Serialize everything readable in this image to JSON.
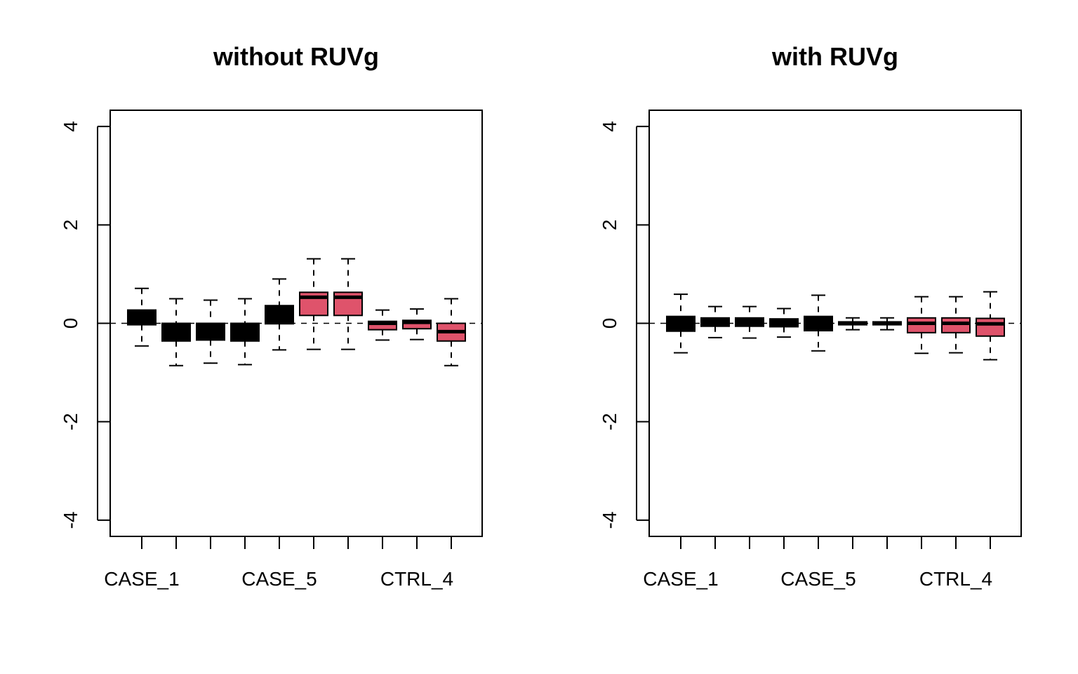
{
  "colors": {
    "case": "#000000",
    "ctrl": "#DF536B"
  },
  "chart_data": [
    {
      "type": "boxplot",
      "title": "without RUVg",
      "ylim": [
        -4.33,
        4.33
      ],
      "yticks": [
        -4,
        -2,
        0,
        2,
        4
      ],
      "tick_labels": [
        "CASE_1",
        "",
        "",
        "",
        "CASE_5",
        "",
        "",
        "",
        "CTRL_4",
        ""
      ],
      "reference_line": 0,
      "box_colors": [
        "case",
        "case",
        "case",
        "case",
        "case",
        "ctrl",
        "ctrl",
        "ctrl",
        "ctrl",
        "ctrl"
      ],
      "boxes": [
        {
          "lower": -0.46,
          "q1": -0.03,
          "median": 0.0,
          "q3": 0.27,
          "upper": 0.71
        },
        {
          "lower": -0.86,
          "q1": -0.36,
          "median": -0.1,
          "q3": 0.0,
          "upper": 0.5
        },
        {
          "lower": -0.81,
          "q1": -0.34,
          "median": -0.1,
          "q3": 0.0,
          "upper": 0.47
        },
        {
          "lower": -0.84,
          "q1": -0.36,
          "median": -0.1,
          "q3": 0.0,
          "upper": 0.5
        },
        {
          "lower": -0.54,
          "q1": -0.01,
          "median": 0.1,
          "q3": 0.36,
          "upper": 0.9
        },
        {
          "lower": -0.53,
          "q1": 0.16,
          "median": 0.53,
          "q3": 0.63,
          "upper": 1.31
        },
        {
          "lower": -0.53,
          "q1": 0.16,
          "median": 0.53,
          "q3": 0.63,
          "upper": 1.31
        },
        {
          "lower": -0.34,
          "q1": -0.13,
          "median": 0.0,
          "q3": 0.04,
          "upper": 0.27
        },
        {
          "lower": -0.33,
          "q1": -0.11,
          "median": 0.02,
          "q3": 0.06,
          "upper": 0.29
        },
        {
          "lower": -0.86,
          "q1": -0.36,
          "median": -0.17,
          "q3": 0.0,
          "upper": 0.5
        }
      ]
    },
    {
      "type": "boxplot",
      "title": "with RUVg",
      "ylim": [
        -4.33,
        4.33
      ],
      "yticks": [
        -4,
        -2,
        0,
        2,
        4
      ],
      "tick_labels": [
        "CASE_1",
        "",
        "",
        "",
        "CASE_5",
        "",
        "",
        "",
        "CTRL_4",
        ""
      ],
      "reference_line": 0,
      "box_colors": [
        "case",
        "case",
        "case",
        "case",
        "case",
        "ctrl",
        "ctrl",
        "ctrl",
        "ctrl",
        "ctrl"
      ],
      "boxes": [
        {
          "lower": -0.6,
          "q1": -0.16,
          "median": 0.0,
          "q3": 0.14,
          "upper": 0.59
        },
        {
          "lower": -0.29,
          "q1": -0.06,
          "median": 0.0,
          "q3": 0.11,
          "upper": 0.34
        },
        {
          "lower": -0.3,
          "q1": -0.06,
          "median": 0.0,
          "q3": 0.11,
          "upper": 0.34
        },
        {
          "lower": -0.28,
          "q1": -0.07,
          "median": 0.0,
          "q3": 0.09,
          "upper": 0.3
        },
        {
          "lower": -0.56,
          "q1": -0.15,
          "median": 0.0,
          "q3": 0.14,
          "upper": 0.57
        },
        {
          "lower": -0.13,
          "q1": -0.03,
          "median": 0.0,
          "q3": 0.03,
          "upper": 0.11
        },
        {
          "lower": -0.13,
          "q1": -0.03,
          "median": 0.0,
          "q3": 0.03,
          "upper": 0.11
        },
        {
          "lower": -0.61,
          "q1": -0.19,
          "median": 0.0,
          "q3": 0.11,
          "upper": 0.54
        },
        {
          "lower": -0.6,
          "q1": -0.19,
          "median": 0.0,
          "q3": 0.11,
          "upper": 0.54
        },
        {
          "lower": -0.74,
          "q1": -0.26,
          "median": -0.01,
          "q3": 0.1,
          "upper": 0.64
        }
      ]
    }
  ]
}
